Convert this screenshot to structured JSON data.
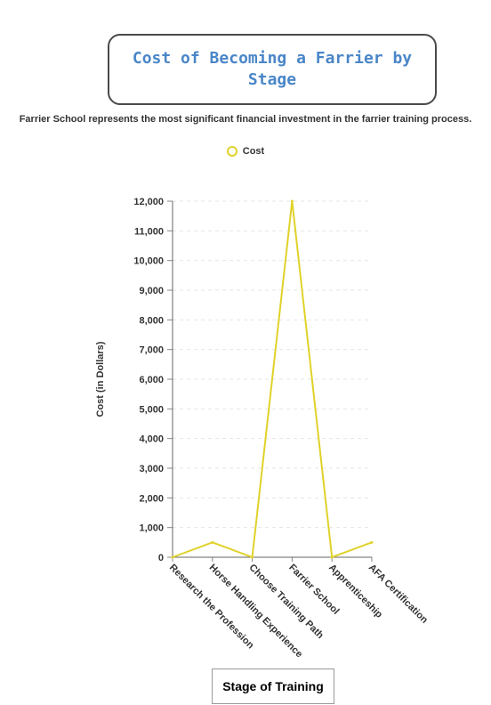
{
  "header": {
    "title": "Cost of Becoming a Farrier by Stage",
    "subtitle": "Farrier School represents the most significant financial investment in the farrier training process."
  },
  "chart_data": {
    "type": "line",
    "categories": [
      "Research the Profession",
      "Horse Handling Experience",
      "Choose Training Path",
      "Farrier School",
      "Apprenticeship",
      "AFA Certification"
    ],
    "series": [
      {
        "name": "Cost",
        "values": [
          0,
          500,
          0,
          12000,
          0,
          500
        ],
        "color": "#e0d22a"
      }
    ],
    "xlabel": "Stage of Training",
    "ylabel": "Cost (in Dollars)",
    "ylim": [
      0,
      12000
    ],
    "yticks": [
      0,
      1000,
      2000,
      3000,
      4000,
      5000,
      6000,
      7000,
      8000,
      9000,
      10000,
      11000,
      12000
    ],
    "ytick_labels": [
      "0",
      "1,000",
      "2,000",
      "3,000",
      "4,000",
      "5,000",
      "6,000",
      "7,000",
      "8,000",
      "9,000",
      "10,000",
      "11,000",
      "12,000"
    ],
    "grid": true,
    "legend_position": "top-center"
  }
}
